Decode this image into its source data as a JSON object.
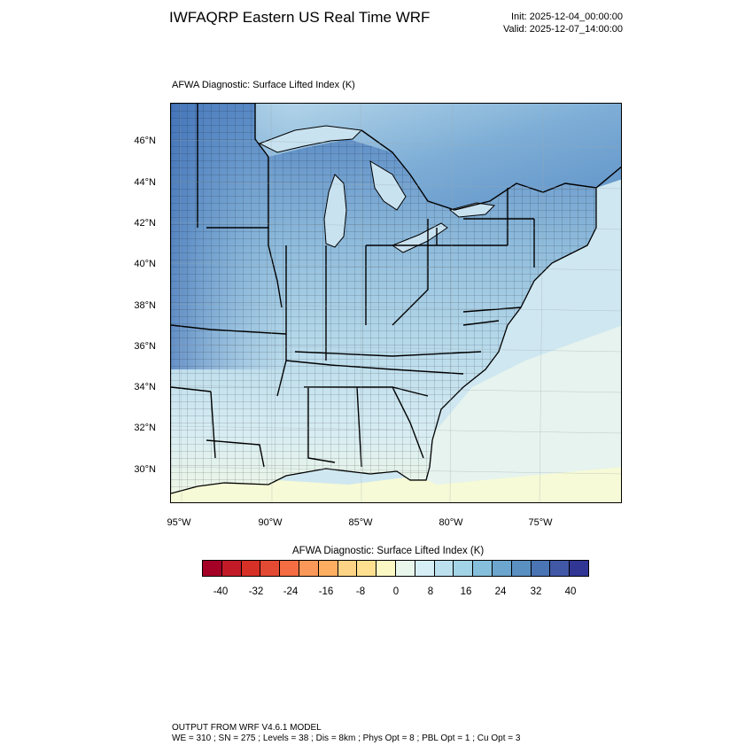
{
  "header": {
    "title": "IWFAQRP Eastern US Real Time WRF",
    "init": "Init: 2025-12-04_00:00:00",
    "valid": "Valid: 2025-12-07_14:00:00"
  },
  "map": {
    "field_title": "AFWA Diagnostic: Surface Lifted Index   (K)",
    "lat_labels": [
      "46°N",
      "44°N",
      "42°N",
      "40°N",
      "38°N",
      "36°N",
      "34°N",
      "32°N",
      "30°N"
    ],
    "lon_labels": [
      "95°W",
      "90°W",
      "85°W",
      "80°W",
      "75°W"
    ],
    "colors": {
      "ocean_low": "#c8e4ee",
      "ocean_south": "#e3f2f1",
      "gulf": "#f4f9d4",
      "land_north": "#5b8fc7",
      "land_mid": "#9dc7e1",
      "land_south": "#d6ecf2",
      "border": "#000000"
    }
  },
  "colorbar": {
    "title": "AFWA Diagnostic: Surface Lifted Index  (K)",
    "labels": [
      "-40",
      "-32",
      "-24",
      "-16",
      "-8",
      "0",
      "8",
      "16",
      "24",
      "32",
      "40"
    ],
    "colors": [
      "#a50026",
      "#c21b27",
      "#d73027",
      "#e34a33",
      "#f46d43",
      "#f99858",
      "#fdae61",
      "#fdd385",
      "#fee090",
      "#fbf8c4",
      "#e8f6ec",
      "#d6eef5",
      "#bde0ee",
      "#a3d3e6",
      "#86bfdc",
      "#6ca5cd",
      "#5a8fc1",
      "#4b74b4",
      "#4158a6",
      "#313695"
    ]
  },
  "footer": {
    "line1": "OUTPUT FROM WRF V4.6.1 MODEL",
    "line2": "WE = 310 ; SN = 275 ; Levels = 38 ; Dis = 8km ; Phys Opt = 8 ; PBL Opt = 1 ; Cu Opt = 3"
  }
}
